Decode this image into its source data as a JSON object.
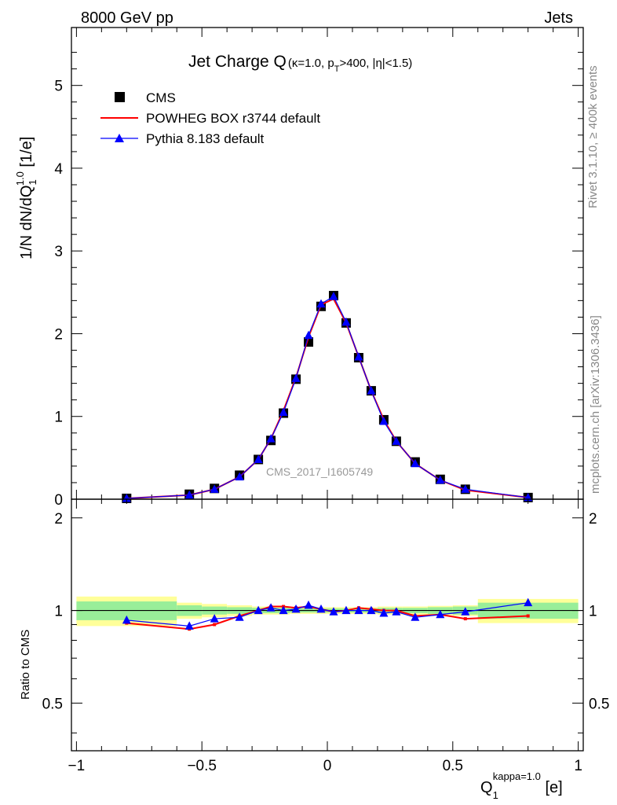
{
  "header": {
    "left": "8000 GeV pp",
    "right": "Jets"
  },
  "side_text": {
    "rivet": "Rivet 3.1.10, ≥ 400k events",
    "mcplots": "mcplots.cern.ch [arXiv:1306.3436]"
  },
  "title": {
    "main": "Jet Charge Q",
    "sub": "(κ=1.0, p",
    "sub_sub": "T",
    "sub_tail": ">400, |η|<1.5)"
  },
  "watermark": "CMS_2017_I1605749",
  "legend": [
    {
      "name": "CMS",
      "color": "#000000",
      "marker": "square"
    },
    {
      "name": "POWHEG BOX r3744 default",
      "color": "#ff0000",
      "marker": "line"
    },
    {
      "name": "Pythia 8.183 default",
      "color": "#0000ff",
      "marker": "triangle"
    }
  ],
  "ylabel_main": "1/N dN/dQ",
  "ylabel_main_sub": "1",
  "ylabel_main_sup": "1.0",
  "ylabel_main_unit": " [1/e]",
  "ylabel_ratio": "Ratio to CMS",
  "xlabel": "Q",
  "xlabel_sub": "1",
  "xlabel_sup": "kappa=1.0",
  "xlabel_unit": " [e]",
  "chart_data": [
    {
      "type": "line",
      "panel": "main",
      "xlim": [
        -1.02,
        1.02
      ],
      "ylim": [
        0,
        5.7
      ],
      "xticks": [
        -1,
        -0.5,
        0,
        0.5,
        1
      ],
      "xtick_labels": [
        "−1",
        "−0.5",
        "0",
        "0.5",
        "1"
      ],
      "yticks": [
        0,
        1,
        2,
        3,
        4,
        5
      ],
      "ytick_labels": [
        "0",
        "1",
        "2",
        "3",
        "4",
        "5"
      ],
      "x": [
        -0.8,
        -0.55,
        -0.45,
        -0.35,
        -0.275,
        -0.225,
        -0.175,
        -0.125,
        -0.075,
        -0.025,
        0.025,
        0.075,
        0.125,
        0.175,
        0.225,
        0.275,
        0.35,
        0.45,
        0.55,
        0.8
      ],
      "series": [
        {
          "name": "CMS",
          "color": "#000000",
          "values": [
            0.01,
            0.06,
            0.13,
            0.29,
            0.48,
            0.71,
            1.04,
            1.45,
            1.9,
            2.33,
            2.46,
            2.13,
            1.71,
            1.31,
            0.96,
            0.7,
            0.45,
            0.24,
            0.12,
            0.02
          ]
        },
        {
          "name": "POWHEG BOX r3744 default",
          "color": "#ff0000",
          "values": [
            0.01,
            0.05,
            0.12,
            0.27,
            0.48,
            0.73,
            1.07,
            1.47,
            1.96,
            2.35,
            2.42,
            2.13,
            1.72,
            1.31,
            0.96,
            0.7,
            0.43,
            0.23,
            0.11,
            0.02
          ]
        },
        {
          "name": "Pythia 8.183 default",
          "color": "#0000ff",
          "values": [
            0.01,
            0.05,
            0.12,
            0.27,
            0.48,
            0.73,
            1.05,
            1.46,
            1.98,
            2.36,
            2.45,
            2.14,
            1.72,
            1.31,
            0.94,
            0.7,
            0.43,
            0.23,
            0.12,
            0.02
          ]
        }
      ]
    },
    {
      "type": "line",
      "panel": "ratio",
      "xlim": [
        -1.02,
        1.02
      ],
      "ylim": [
        0.35,
        2.3
      ],
      "xticks": [
        -1,
        -0.5,
        0,
        0.5,
        1
      ],
      "yticks": [
        0.5,
        1,
        2
      ],
      "ytick_labels": [
        "0.5",
        "1",
        "2"
      ],
      "x": [
        -0.8,
        -0.55,
        -0.45,
        -0.35,
        -0.275,
        -0.225,
        -0.175,
        -0.125,
        -0.075,
        -0.025,
        0.025,
        0.075,
        0.125,
        0.175,
        0.225,
        0.275,
        0.35,
        0.45,
        0.55,
        0.8
      ],
      "bin_edges": [
        -1,
        -0.6,
        -0.5,
        -0.4,
        -0.3,
        -0.25,
        -0.2,
        -0.15,
        -0.1,
        -0.05,
        0,
        0.05,
        0.1,
        0.15,
        0.2,
        0.25,
        0.3,
        0.4,
        0.5,
        0.6,
        1
      ],
      "band_inner": [
        0.07,
        0.04,
        0.03,
        0.025,
        0.02,
        0.02,
        0.02,
        0.015,
        0.015,
        0.015,
        0.015,
        0.015,
        0.015,
        0.015,
        0.02,
        0.02,
        0.02,
        0.025,
        0.03,
        0.06
      ],
      "band_outer": [
        0.11,
        0.06,
        0.05,
        0.04,
        0.03,
        0.03,
        0.03,
        0.025,
        0.025,
        0.025,
        0.025,
        0.025,
        0.025,
        0.025,
        0.03,
        0.03,
        0.03,
        0.035,
        0.04,
        0.09
      ],
      "series": [
        {
          "name": "POWHEG BOX r3744 default",
          "color": "#ff0000",
          "values": [
            0.91,
            0.87,
            0.9,
            0.96,
            1.0,
            1.03,
            1.03,
            1.02,
            1.03,
            1.01,
            0.99,
            1.0,
            1.02,
            1.01,
            1.0,
            1.0,
            0.96,
            0.97,
            0.94,
            0.96
          ]
        },
        {
          "name": "Pythia 8.183 default",
          "color": "#0000ff",
          "values": [
            0.93,
            0.89,
            0.94,
            0.95,
            1.0,
            1.02,
            1.0,
            1.01,
            1.04,
            1.01,
            0.99,
            1.0,
            1.0,
            1.0,
            0.98,
            0.99,
            0.95,
            0.97,
            0.99,
            1.06
          ]
        }
      ]
    }
  ]
}
